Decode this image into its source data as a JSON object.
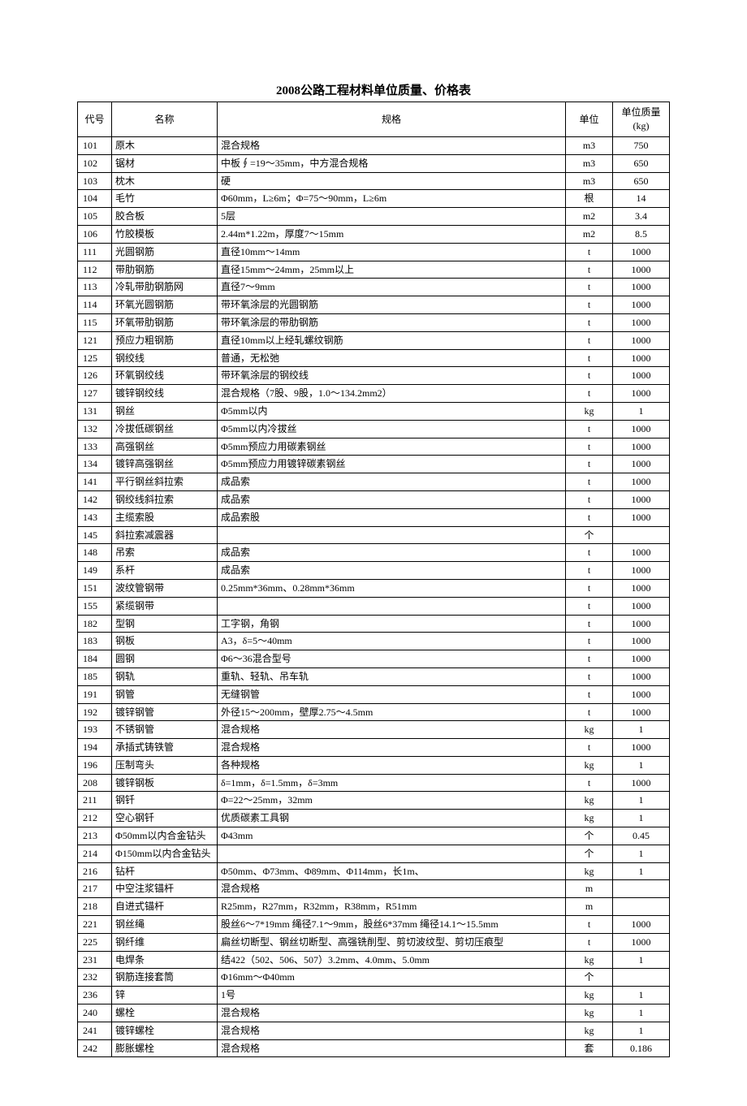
{
  "title": "2008公路工程材料单位质量、价格表",
  "columns": {
    "code": "代号",
    "name": "名称",
    "spec": "规格",
    "unit": "单位",
    "mass": "单位质量(kg)"
  },
  "rows": [
    {
      "code": "101",
      "name": "原木",
      "spec": "混合规格",
      "unit": "m3",
      "mass": "750"
    },
    {
      "code": "102",
      "name": "锯材",
      "spec": "中板∮=19～35mm，中方混合规格",
      "unit": "m3",
      "mass": "650"
    },
    {
      "code": "103",
      "name": "枕木",
      "spec": "硬",
      "unit": "m3",
      "mass": "650"
    },
    {
      "code": "104",
      "name": "毛竹",
      "spec": "Φ60mm，L≥6m；Φ=75～90mm，L≥6m",
      "unit": "根",
      "mass": "14"
    },
    {
      "code": "105",
      "name": "胶合板",
      "spec": "5层",
      "unit": "m2",
      "mass": "3.4"
    },
    {
      "code": "106",
      "name": "竹胶模板",
      "spec": "2.44m*1.22m，厚度7～15mm",
      "unit": "m2",
      "mass": "8.5"
    },
    {
      "code": "111",
      "name": "光圆钢筋",
      "spec": "直径10mm～14mm",
      "unit": "t",
      "mass": "1000"
    },
    {
      "code": "112",
      "name": "带肋钢筋",
      "spec": "直径15mm～24mm，25mm以上",
      "unit": "t",
      "mass": "1000"
    },
    {
      "code": "113",
      "name": "冷轧带肋钢筋网",
      "spec": "直径7～9mm",
      "unit": "t",
      "mass": "1000"
    },
    {
      "code": "114",
      "name": "环氧光圆钢筋",
      "spec": "带环氧涂层的光圆钢筋",
      "unit": "t",
      "mass": "1000"
    },
    {
      "code": "115",
      "name": "环氧带肋钢筋",
      "spec": "带环氧涂层的带肋钢筋",
      "unit": "t",
      "mass": "1000"
    },
    {
      "code": "121",
      "name": "预应力粗钢筋",
      "spec": "直径10mm以上经轧螺纹钢筋",
      "unit": "t",
      "mass": "1000"
    },
    {
      "code": "125",
      "name": "钢绞线",
      "spec": "普通，无松弛",
      "unit": "t",
      "mass": "1000"
    },
    {
      "code": "126",
      "name": "环氧钢绞线",
      "spec": "带环氧涂层的钢绞线",
      "unit": "t",
      "mass": "1000"
    },
    {
      "code": "127",
      "name": "镀锌钢绞线",
      "spec": "混合规格（7股、9股，1.0～134.2mm2）",
      "unit": "t",
      "mass": "1000"
    },
    {
      "code": "131",
      "name": "钢丝",
      "spec": "Φ5mm以内",
      "unit": "kg",
      "mass": "1"
    },
    {
      "code": "132",
      "name": "冷拔低碳钢丝",
      "spec": "Φ5mm以内冷拔丝",
      "unit": "t",
      "mass": "1000"
    },
    {
      "code": "133",
      "name": "高强钢丝",
      "spec": "Φ5mm预应力用碳素钢丝",
      "unit": "t",
      "mass": "1000"
    },
    {
      "code": "134",
      "name": "镀锌高强钢丝",
      "spec": "Φ5mm预应力用镀锌碳素钢丝",
      "unit": "t",
      "mass": "1000"
    },
    {
      "code": "141",
      "name": "平行钢丝斜拉索",
      "spec": "成品索",
      "unit": "t",
      "mass": "1000"
    },
    {
      "code": "142",
      "name": "钢绞线斜拉索",
      "spec": "成品索",
      "unit": "t",
      "mass": "1000"
    },
    {
      "code": "143",
      "name": "主缆索股",
      "spec": "成品索股",
      "unit": "t",
      "mass": "1000"
    },
    {
      "code": "145",
      "name": "斜拉索减震器",
      "spec": "",
      "unit": "个",
      "mass": ""
    },
    {
      "code": "148",
      "name": "吊索",
      "spec": "成品索",
      "unit": "t",
      "mass": "1000"
    },
    {
      "code": "149",
      "name": "系杆",
      "spec": "成品索",
      "unit": "t",
      "mass": "1000"
    },
    {
      "code": "151",
      "name": "波纹管钢带",
      "spec": "0.25mm*36mm、0.28mm*36mm",
      "unit": "t",
      "mass": "1000"
    },
    {
      "code": "155",
      "name": "紧缆钢带",
      "spec": "",
      "unit": "t",
      "mass": "1000"
    },
    {
      "code": "182",
      "name": "型钢",
      "spec": "工字钢，角钢",
      "unit": "t",
      "mass": "1000"
    },
    {
      "code": "183",
      "name": "钢板",
      "spec": "A3，δ=5～40mm",
      "unit": "t",
      "mass": "1000"
    },
    {
      "code": "184",
      "name": "圆钢",
      "spec": "Φ6～36混合型号",
      "unit": "t",
      "mass": "1000"
    },
    {
      "code": "185",
      "name": "钢轨",
      "spec": "重轨、轻轨、吊车轨",
      "unit": "t",
      "mass": "1000"
    },
    {
      "code": "191",
      "name": "钢管",
      "spec": "无缝钢管",
      "unit": "t",
      "mass": "1000"
    },
    {
      "code": "192",
      "name": "镀锌钢管",
      "spec": "外径15～200mm，壁厚2.75～4.5mm",
      "unit": "t",
      "mass": "1000"
    },
    {
      "code": "193",
      "name": "不锈钢管",
      "spec": "混合规格",
      "unit": "kg",
      "mass": "1"
    },
    {
      "code": "194",
      "name": "承插式铸铁管",
      "spec": "混合规格",
      "unit": "t",
      "mass": "1000"
    },
    {
      "code": "196",
      "name": "压制弯头",
      "spec": "各种规格",
      "unit": "kg",
      "mass": "1"
    },
    {
      "code": "208",
      "name": "镀锌钢板",
      "spec": "δ=1mm，δ=1.5mm，δ=3mm",
      "unit": "t",
      "mass": "1000"
    },
    {
      "code": "211",
      "name": "钢钎",
      "spec": "Φ=22～25mm，32mm",
      "unit": "kg",
      "mass": "1"
    },
    {
      "code": "212",
      "name": "空心钢钎",
      "spec": "优质碳素工具钢",
      "unit": "kg",
      "mass": "1"
    },
    {
      "code": "213",
      "name": "Φ50mm以内合金钻头",
      "spec": "Φ43mm",
      "unit": "个",
      "mass": "0.45"
    },
    {
      "code": "214",
      "name": "Φ150mm以内合金钻头",
      "spec": "",
      "unit": "个",
      "mass": "1"
    },
    {
      "code": "216",
      "name": "钻杆",
      "spec": "Φ50mm、Φ73mm、Φ89mm、Φ114mm，长1m、",
      "unit": "kg",
      "mass": "1"
    },
    {
      "code": "217",
      "name": "中空注浆锚杆",
      "spec": "混合规格",
      "unit": "m",
      "mass": ""
    },
    {
      "code": "218",
      "name": "自进式锚杆",
      "spec": "R25mm，R27mm，R32mm，R38mm，R51mm",
      "unit": "m",
      "mass": ""
    },
    {
      "code": "221",
      "name": "钢丝绳",
      "spec": "股丝6～7*19mm 绳径7.1～9mm，股丝6*37mm 绳径14.1～15.5mm",
      "unit": "t",
      "mass": "1000"
    },
    {
      "code": "225",
      "name": "钢纤维",
      "spec": "扁丝切断型、钢丝切断型、高强铣削型、剪切波纹型、剪切压痕型",
      "unit": "t",
      "mass": "1000"
    },
    {
      "code": "231",
      "name": "电焊条",
      "spec": "结422（502、506、507）3.2mm、4.0mm、5.0mm",
      "unit": "kg",
      "mass": "1"
    },
    {
      "code": "232",
      "name": "钢筋连接套筒",
      "spec": "Φ16mm～Φ40mm",
      "unit": "个",
      "mass": ""
    },
    {
      "code": "236",
      "name": "锌",
      "spec": "1号",
      "unit": "kg",
      "mass": "1"
    },
    {
      "code": "240",
      "name": "螺栓",
      "spec": "混合规格",
      "unit": "kg",
      "mass": "1"
    },
    {
      "code": "241",
      "name": "镀锌螺栓",
      "spec": "混合规格",
      "unit": "kg",
      "mass": "1"
    },
    {
      "code": "242",
      "name": "膨胀螺栓",
      "spec": "混合规格",
      "unit": "套",
      "mass": "0.186"
    }
  ]
}
